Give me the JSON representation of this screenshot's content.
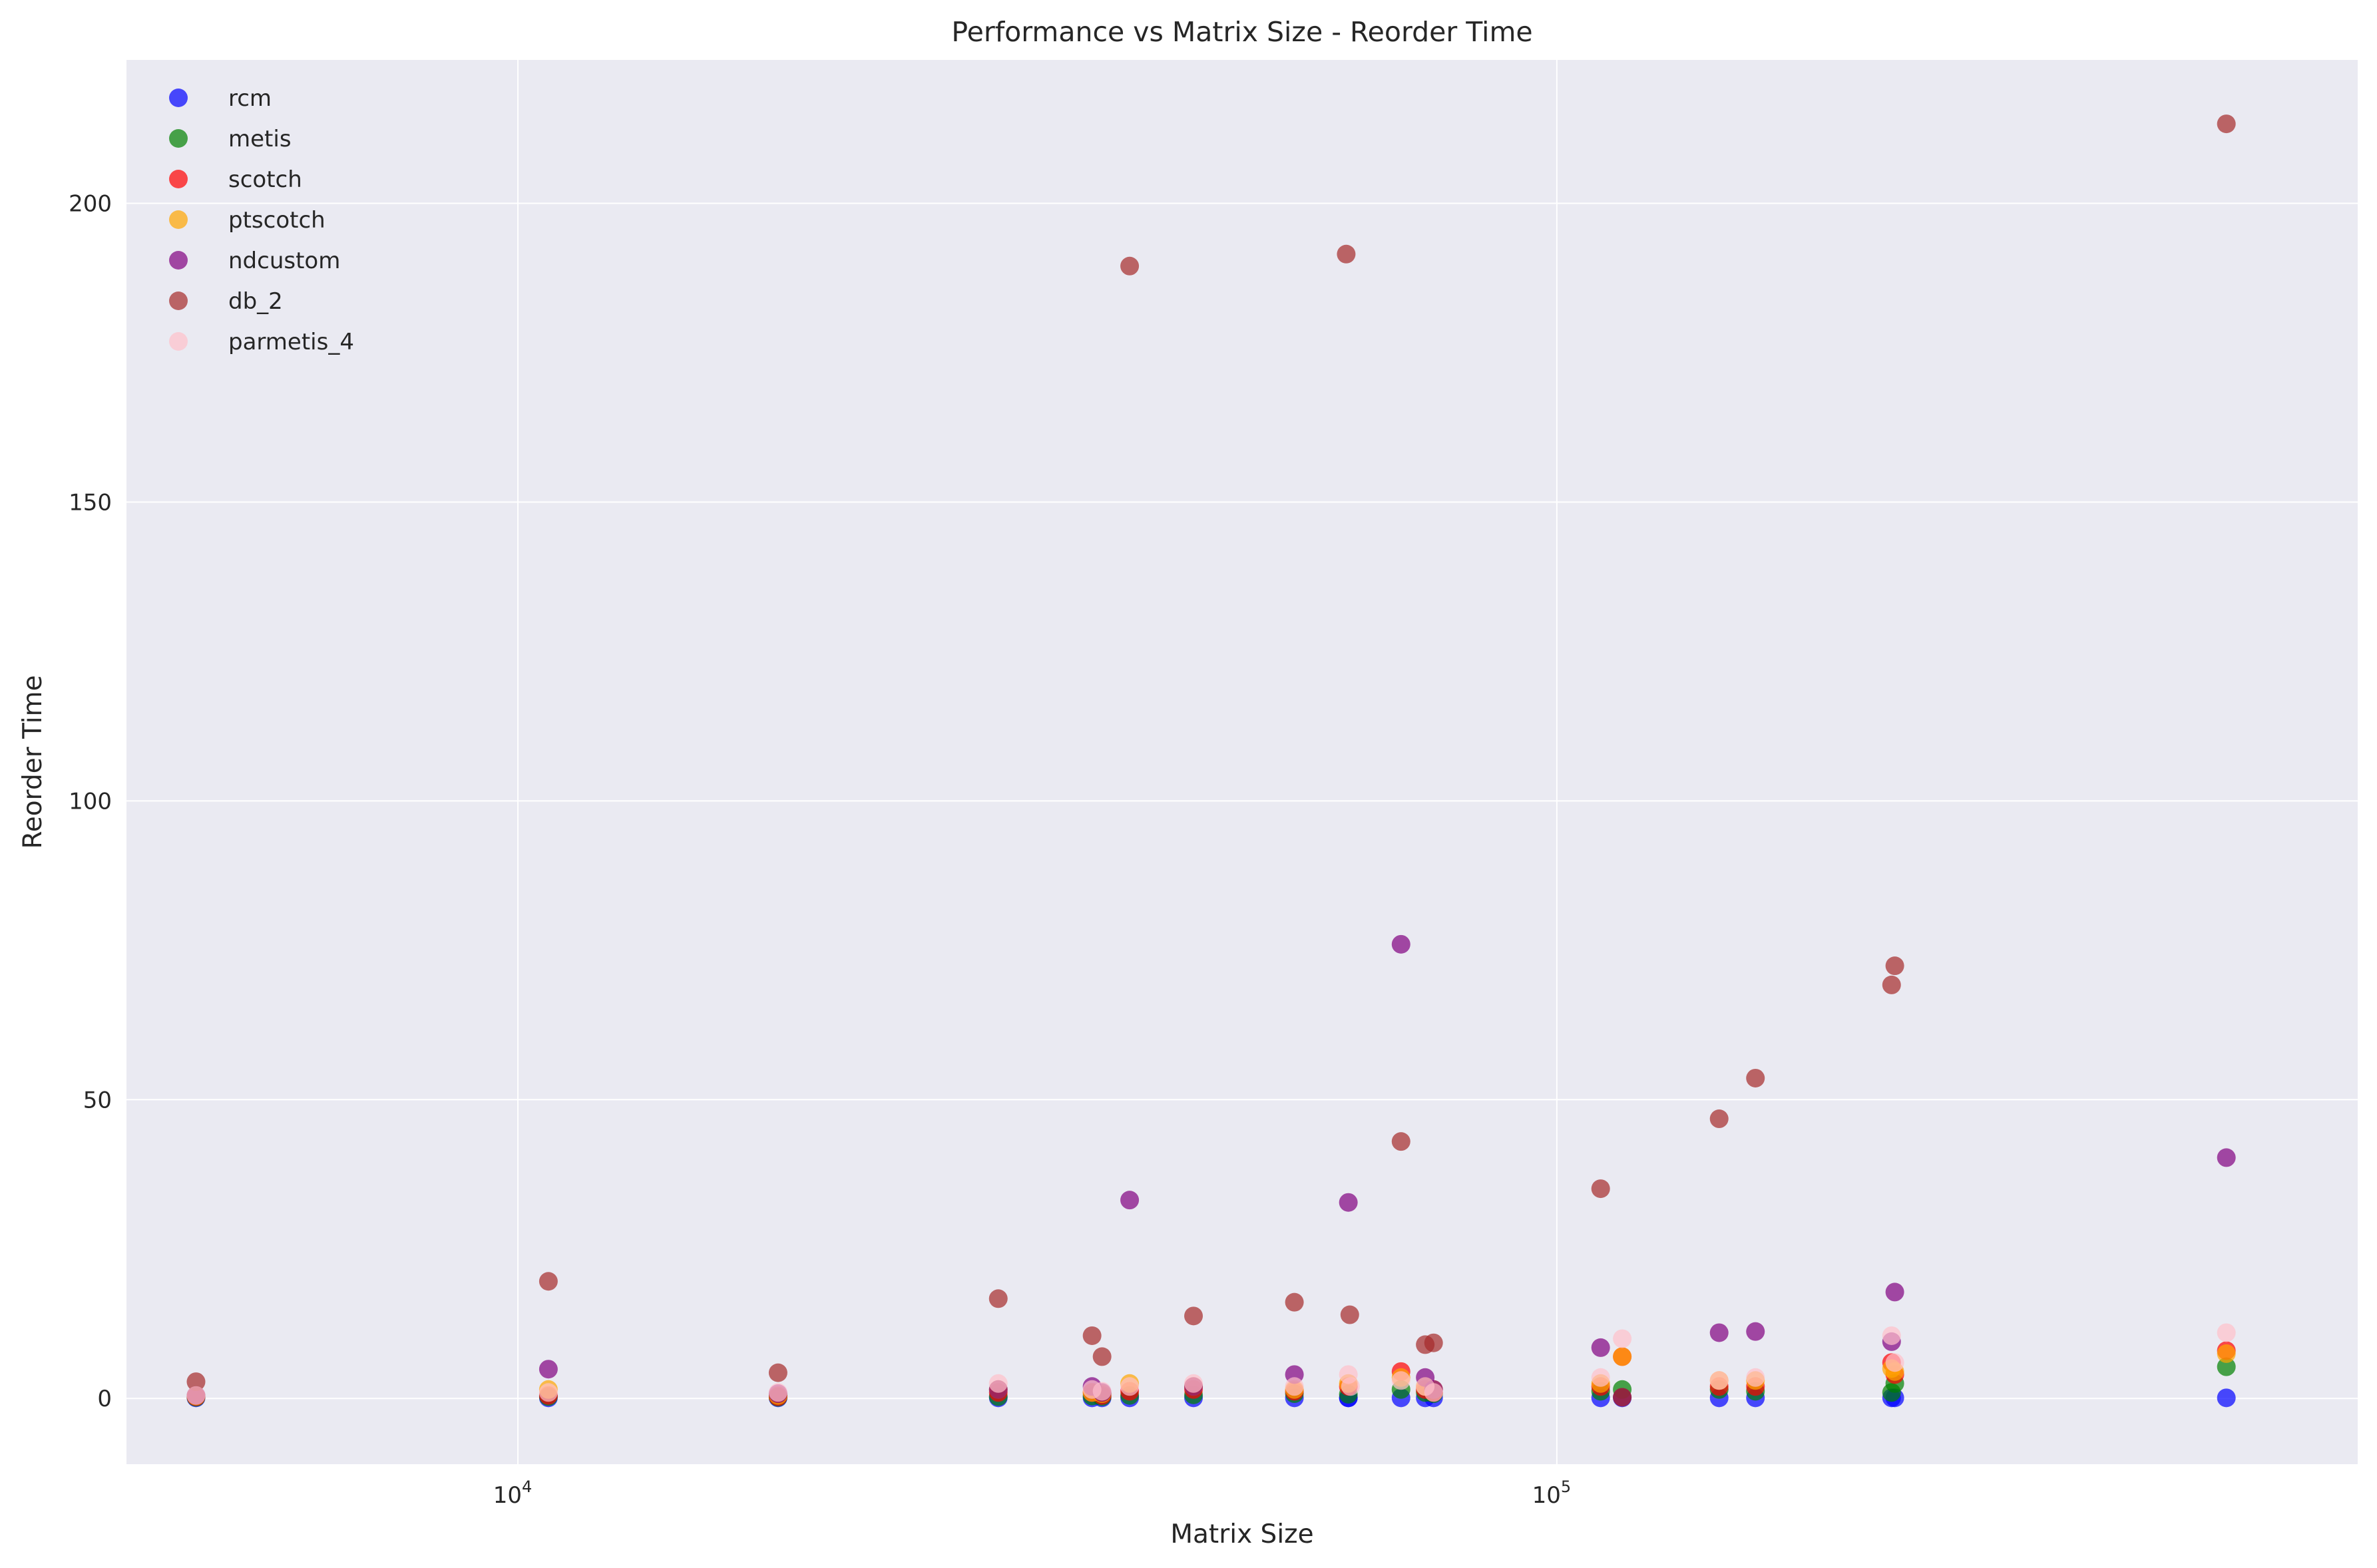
{
  "chart_data": {
    "type": "scatter",
    "title": "Performance vs Matrix Size - Reorder Time",
    "xlabel": "Matrix Size",
    "ylabel": "Reorder Time",
    "x_scale": "log",
    "xlim": [
      4200,
      590000
    ],
    "ylim": [
      -11,
      224
    ],
    "x_ticks": [
      {
        "value": 10000,
        "base": "10",
        "exp": "4"
      },
      {
        "value": 100000,
        "base": "10",
        "exp": "5"
      }
    ],
    "y_ticks": [
      {
        "value": 0,
        "label": "0"
      },
      {
        "value": 50,
        "label": "50"
      },
      {
        "value": 100,
        "label": "100"
      },
      {
        "value": 150,
        "label": "150"
      },
      {
        "value": 200,
        "label": "200"
      }
    ],
    "grid": true,
    "legend_position": "top-left",
    "series": [
      {
        "name": "rcm",
        "color": "#0000ff",
        "x": [
          4900,
          10700,
          17800,
          29000,
          35700,
          36500,
          38800,
          44700,
          55900,
          63000,
          63000,
          70800,
          74700,
          76100,
          110200,
          115600,
          143300,
          155300,
          210000,
          211500,
          441000
        ],
        "y": [
          0.1,
          0.1,
          0.1,
          0.1,
          0.1,
          0.1,
          0.1,
          0.1,
          0.1,
          0.1,
          0.1,
          0.1,
          0.1,
          0.1,
          0.1,
          0.1,
          0.1,
          0.1,
          0.1,
          0.1,
          0.1
        ]
      },
      {
        "name": "metis",
        "color": "#008000",
        "x": [
          4900,
          10700,
          17800,
          29000,
          35700,
          36500,
          38800,
          44700,
          55900,
          63000,
          70800,
          74700,
          76100,
          110200,
          115600,
          143300,
          155300,
          210000,
          211500,
          441000
        ],
        "y": [
          0.2,
          0.3,
          0.2,
          0.3,
          0.4,
          0.3,
          0.5,
          0.6,
          0.8,
          0.7,
          1.5,
          1.0,
          0.8,
          1.2,
          1.5,
          1.5,
          1.2,
          1.0,
          2.5,
          5.3
        ]
      },
      {
        "name": "scotch",
        "color": "#ff0000",
        "x": [
          4900,
          10700,
          17800,
          29000,
          35700,
          36500,
          38800,
          44700,
          55900,
          63000,
          70800,
          74700,
          76100,
          110200,
          115600,
          143300,
          155300,
          210000,
          211500,
          441000
        ],
        "y": [
          0.3,
          0.5,
          0.3,
          1.0,
          1.0,
          0.5,
          1.2,
          1.5,
          1.2,
          2.0,
          4.5,
          1.5,
          1.0,
          2.0,
          7.0,
          2.0,
          2.0,
          6.0,
          4.0,
          8.0
        ]
      },
      {
        "name": "ptscotch",
        "color": "#ffa500",
        "x": [
          4900,
          10700,
          17800,
          29000,
          35700,
          36500,
          38800,
          44700,
          55900,
          63000,
          70800,
          74700,
          76100,
          110200,
          115600,
          143300,
          155300,
          210000,
          211500,
          441000
        ],
        "y": [
          0.4,
          1.5,
          0.5,
          1.5,
          1.0,
          0.8,
          2.5,
          2.0,
          1.5,
          2.5,
          3.5,
          2.0,
          1.5,
          2.5,
          7.0,
          3.0,
          3.0,
          5.0,
          4.5,
          7.5
        ]
      },
      {
        "name": "ndcustom",
        "color": "#800080",
        "x": [
          4900,
          10700,
          17800,
          29000,
          35700,
          36500,
          38800,
          44700,
          55900,
          63000,
          70800,
          74700,
          76100,
          110200,
          115600,
          143300,
          155300,
          210000,
          211500,
          441000
        ],
        "y": [
          0.5,
          4.9,
          0.8,
          1.5,
          2.0,
          1.0,
          33.2,
          2.0,
          4.0,
          32.8,
          76.0,
          3.5,
          1.5,
          8.5,
          0.2,
          11.0,
          11.2,
          9.5,
          17.8,
          40.3
        ]
      },
      {
        "name": "db_2",
        "color": "#a52a2a",
        "x": [
          4900,
          10700,
          17800,
          29000,
          35700,
          36500,
          38800,
          44700,
          55900,
          62700,
          63200,
          70800,
          74700,
          76100,
          110200,
          115600,
          143300,
          155300,
          210000,
          211500,
          441000
        ],
        "y": [
          2.8,
          19.6,
          4.3,
          16.7,
          10.5,
          7.0,
          189.5,
          13.8,
          16.1,
          191.5,
          14.0,
          43.0,
          9.0,
          9.3,
          35.1,
          0.2,
          46.8,
          53.6,
          69.2,
          72.4,
          213.3
        ]
      },
      {
        "name": "parmetis_4",
        "color": "#ffc0cb",
        "x": [
          4900,
          10700,
          17800,
          29000,
          35700,
          36500,
          38800,
          44700,
          55900,
          63000,
          63300,
          70800,
          74700,
          76100,
          110200,
          115600,
          143300,
          155300,
          210000,
          211500,
          441000
        ],
        "y": [
          0.5,
          1.0,
          1.0,
          2.5,
          1.5,
          1.2,
          2.0,
          2.5,
          2.0,
          4.0,
          2.0,
          3.0,
          2.0,
          1.0,
          3.5,
          10.0,
          3.0,
          3.5,
          10.5,
          6.0,
          11.0
        ]
      }
    ]
  }
}
